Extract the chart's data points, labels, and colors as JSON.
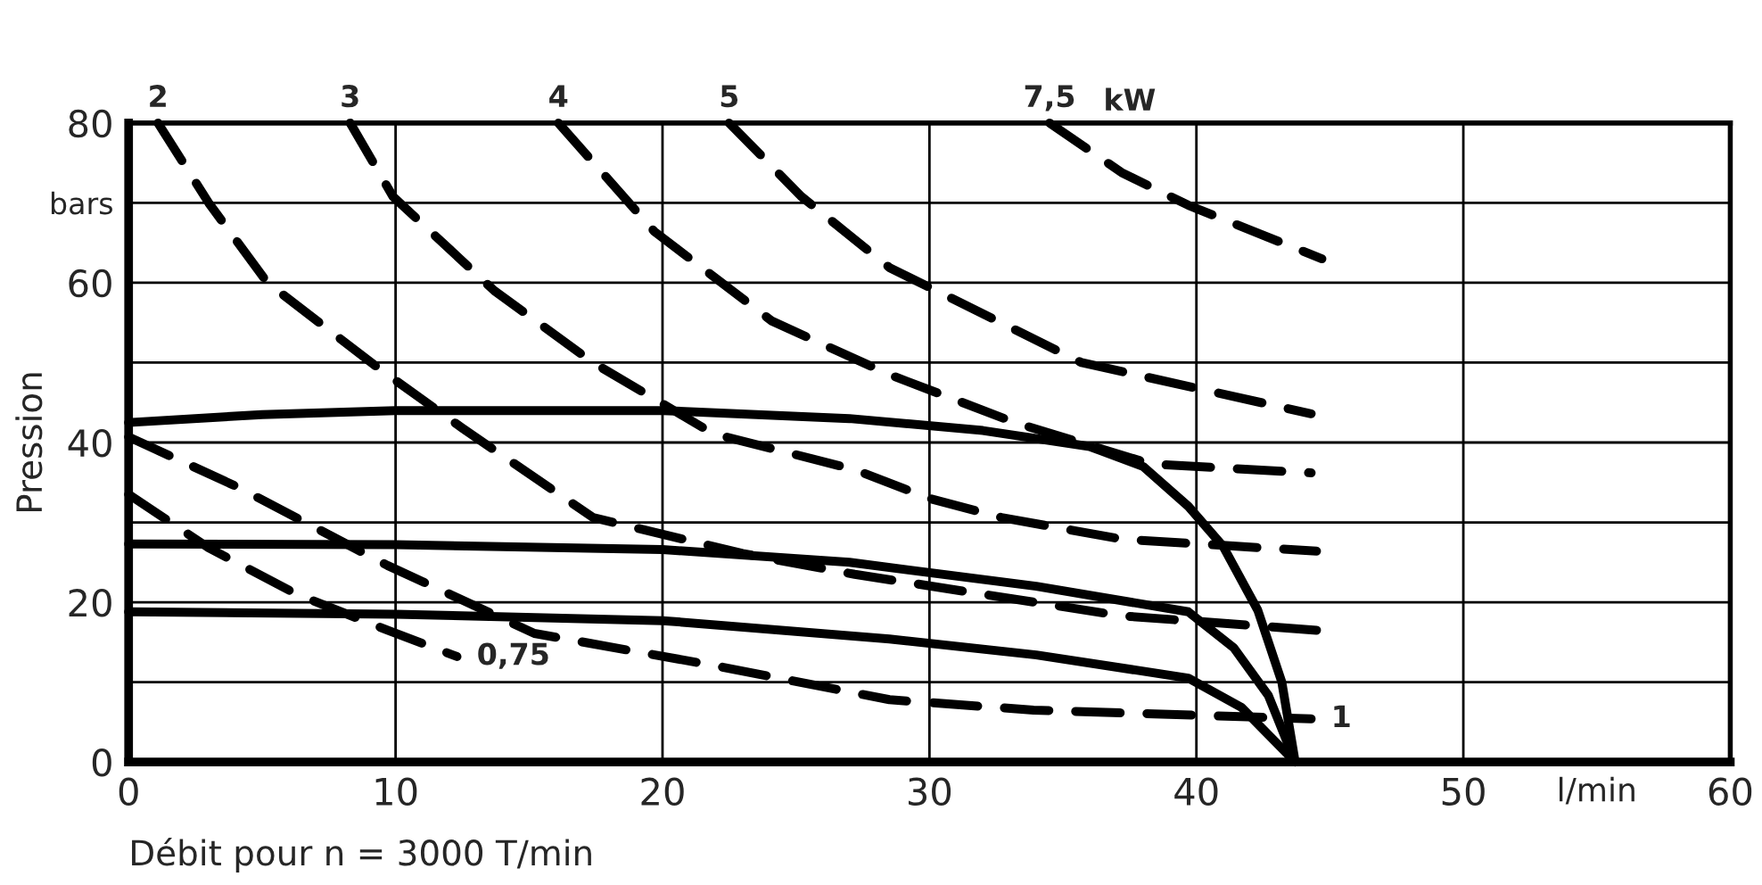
{
  "chart_data": {
    "type": "line",
    "xlabel": "Débit pour n = 3000 T/min",
    "ylabel": "Pression",
    "xlim": [
      0,
      60
    ],
    "ylim": [
      0,
      80
    ],
    "xticks": [
      0,
      10,
      20,
      30,
      40,
      50,
      {
        "value": 55,
        "label": "l/min"
      },
      60
    ],
    "yticks": [
      0,
      {
        "value": 10,
        "label": null
      },
      20,
      {
        "value": 30,
        "label": null
      },
      40,
      {
        "value": 50,
        "label": null
      },
      60,
      {
        "value": 70,
        "label": "bars"
      },
      80
    ],
    "grid": true,
    "marker": "none",
    "annotations": [
      "kW"
    ],
    "series": [
      {
        "color": "#000000",
        "line_style": "solid",
        "x": [
          0,
          5,
          10,
          20,
          27,
          32,
          36,
          38,
          39.7,
          41,
          42.3,
          43.2,
          43.7
        ],
        "values": [
          42.5,
          43.5,
          44,
          44,
          43,
          41.5,
          39.5,
          37,
          32,
          27,
          19,
          10,
          0
        ]
      },
      {
        "color": "#000000",
        "line_style": "solid",
        "x": [
          0,
          10,
          20,
          27,
          34,
          39.7,
          41.4,
          42.7,
          43.7
        ],
        "values": [
          27.3,
          27.2,
          26.6,
          25,
          22,
          18.8,
          14.3,
          8.3,
          0
        ]
      },
      {
        "color": "#000000",
        "line_style": "solid",
        "x": [
          0,
          10,
          20,
          28.5,
          34,
          39.7,
          41.7,
          43.7
        ],
        "values": [
          18.8,
          18.5,
          17.7,
          15.4,
          13.4,
          10.5,
          6.8,
          0
        ]
      },
      {
        "name": "0,75",
        "color": "#000000",
        "line_style": "dashed",
        "x": [
          0,
          3,
          6.3,
          9.7,
          12.3
        ],
        "values": [
          33.5,
          26.8,
          21,
          16.5,
          13.2
        ]
      },
      {
        "name": "1",
        "color": "#000000",
        "line_style": "dashed",
        "x": [
          0,
          4.1,
          9.7,
          15.2,
          21.9,
          28.5,
          33.9,
          44.3
        ],
        "values": [
          40.7,
          34.4,
          24.6,
          16.1,
          12.1,
          7.8,
          6.5,
          5.4
        ]
      },
      {
        "name": "2",
        "color": "#000000",
        "line_style": "dashed",
        "x": [
          1.1,
          3,
          5.2,
          9.4,
          12.5,
          17.4,
          23,
          27.2,
          37.2,
          44.5
        ],
        "values": [
          80,
          70,
          60,
          49.2,
          41.8,
          30.6,
          26.1,
          23.5,
          18.3,
          16.5
        ]
      },
      {
        "name": "3",
        "color": "#000000",
        "line_style": "dashed",
        "x": [
          8.3,
          9.9,
          13.7,
          17.4,
          21.9,
          27.2,
          30,
          32.7,
          37.2,
          44.5
        ],
        "values": [
          80,
          70.8,
          59,
          50,
          41.1,
          36.6,
          33,
          30.6,
          27.9,
          26.4
        ]
      },
      {
        "name": "4",
        "color": "#000000",
        "line_style": "dashed",
        "x": [
          16.1,
          19.7,
          24.1,
          28.5,
          33.2,
          38.3,
          44.3
        ],
        "values": [
          80,
          66.4,
          55.2,
          48.5,
          42.5,
          37.3,
          36.2
        ]
      },
      {
        "name": "5",
        "color": "#000000",
        "line_style": "dashed",
        "x": [
          22.5,
          25.2,
          28.5,
          35.7,
          44.3
        ],
        "values": [
          80,
          70.8,
          61.9,
          50,
          43.6
        ]
      },
      {
        "name": "7,5",
        "color": "#000000",
        "line_style": "dashed",
        "x": [
          34.5,
          37.2,
          39.7,
          44.7
        ],
        "values": [
          80,
          73.8,
          69.7,
          63
        ]
      }
    ]
  }
}
